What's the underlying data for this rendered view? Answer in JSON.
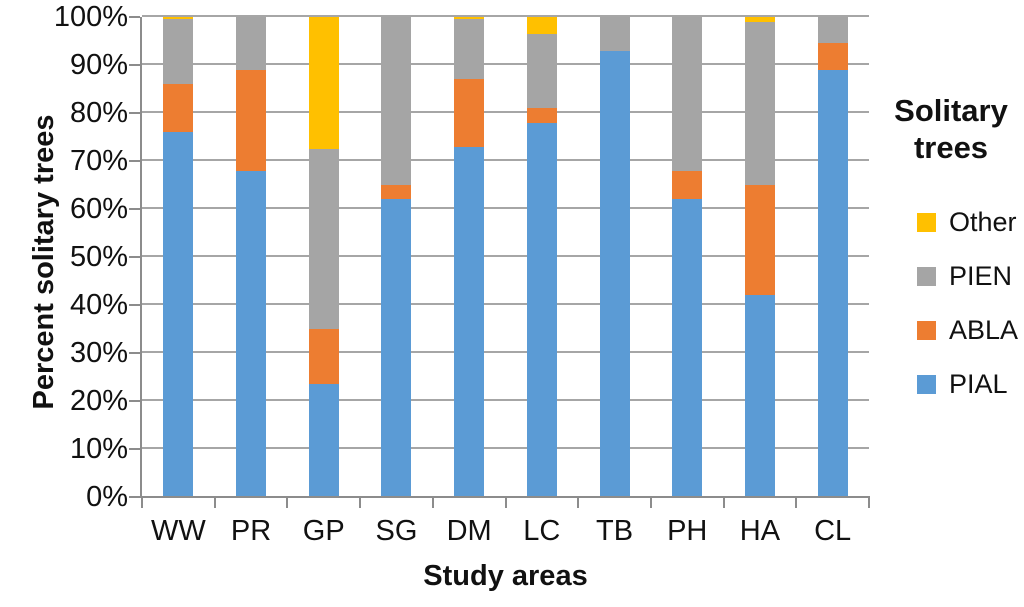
{
  "chart_data": {
    "type": "bar",
    "variant": "stacked-100-percent",
    "title": "",
    "xlabel": "Study areas",
    "ylabel": "Percent solitary trees",
    "categories": [
      "WW",
      "PR",
      "GP",
      "SG",
      "DM",
      "LC",
      "TB",
      "PH",
      "HA",
      "CL"
    ],
    "series": [
      {
        "name": "PIAL",
        "color": "#5B9BD5",
        "values": [
          76,
          68,
          23.5,
          62,
          73,
          78,
          93,
          62,
          42,
          89
        ]
      },
      {
        "name": "ABLA",
        "color": "#ED7D31",
        "values": [
          10,
          21,
          11.5,
          3,
          14,
          3,
          0,
          6,
          23,
          5.5
        ]
      },
      {
        "name": "PIEN",
        "color": "#A5A5A5",
        "values": [
          13.5,
          11,
          37.5,
          35,
          12.5,
          15.5,
          7,
          32,
          34,
          5.5
        ]
      },
      {
        "name": "Other",
        "color": "#FFC000",
        "values": [
          0.5,
          0,
          27.5,
          0,
          0.5,
          3.5,
          0,
          0,
          1,
          0
        ]
      }
    ],
    "ylim": [
      0,
      100
    ],
    "ytick_step": 10,
    "ytick_labels": [
      "0%",
      "10%",
      "20%",
      "30%",
      "40%",
      "50%",
      "60%",
      "70%",
      "80%",
      "90%",
      "100%"
    ],
    "grid": "horizontal",
    "gridline_color": "#a6a6a6",
    "axis_color": "#8c8c8c",
    "legend_title": "Solitary trees",
    "legend_position": "right",
    "legend_order": [
      "Other",
      "PIEN",
      "ABLA",
      "PIAL"
    ]
  }
}
